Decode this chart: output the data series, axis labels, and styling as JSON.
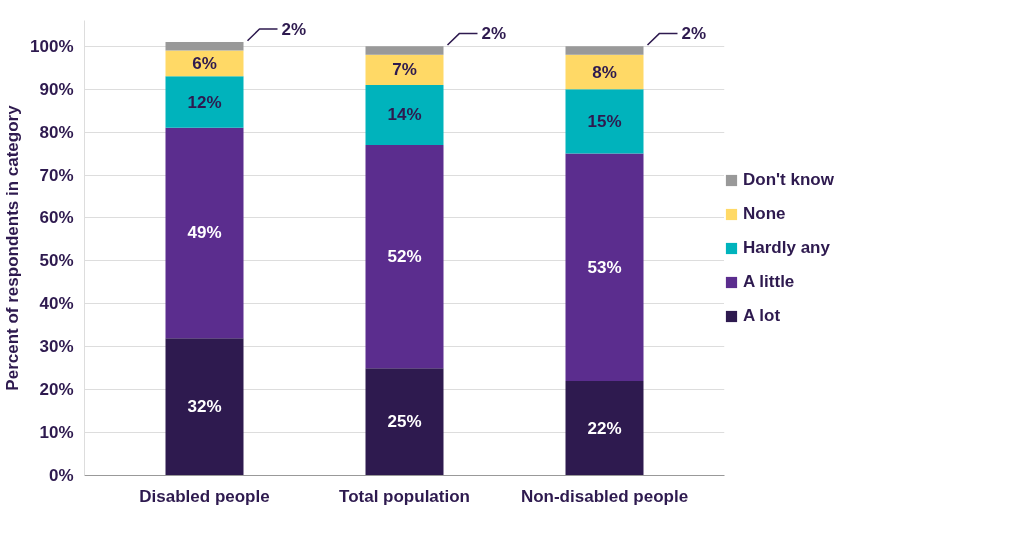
{
  "chart_data": {
    "type": "bar",
    "stacked": true,
    "ylabel": "Percent of respondents in category",
    "categories": [
      "Disabled people",
      "Total population",
      "Non-disabled people"
    ],
    "series": [
      {
        "name": "A lot",
        "color": "#2e1a4f",
        "values": [
          32,
          25,
          22
        ],
        "value_labels": [
          "32%",
          "25%",
          "22%"
        ]
      },
      {
        "name": "A little",
        "color": "#5b2d8e",
        "values": [
          49,
          52,
          53
        ],
        "value_labels": [
          "49%",
          "52%",
          "53%"
        ]
      },
      {
        "name": "Hardly any",
        "color": "#00b3bc",
        "values": [
          12,
          14,
          15
        ],
        "value_labels": [
          "12%",
          "14%",
          "15%"
        ]
      },
      {
        "name": "None",
        "color": "#ffd966",
        "values": [
          6,
          7,
          8
        ],
        "value_labels": [
          "6%",
          "7%",
          "8%"
        ]
      },
      {
        "name": "Don't know",
        "color": "#999999",
        "values": [
          2,
          2,
          2
        ],
        "value_labels": [
          "2%",
          "2%",
          "2%"
        ]
      }
    ],
    "ylim": [
      0,
      106
    ],
    "yticks": [
      {
        "value": 0,
        "label": "0%"
      },
      {
        "value": 10,
        "label": "10%"
      },
      {
        "value": 20,
        "label": "20%"
      },
      {
        "value": 30,
        "label": "30%"
      },
      {
        "value": 40,
        "label": "40%"
      },
      {
        "value": 50,
        "label": "50%"
      },
      {
        "value": 60,
        "label": "60%"
      },
      {
        "value": 70,
        "label": "70%"
      },
      {
        "value": 80,
        "label": "80%"
      },
      {
        "value": 90,
        "label": "90%"
      },
      {
        "value": 100,
        "label": "100%"
      }
    ],
    "grid": "y",
    "legend": "right"
  }
}
